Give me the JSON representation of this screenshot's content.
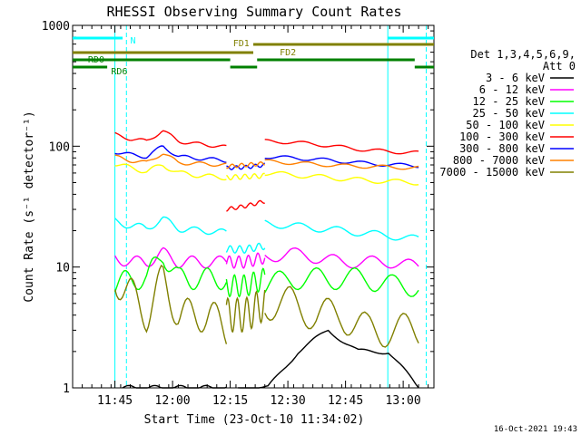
{
  "chart_data": {
    "type": "line",
    "title": "RHESSI Observing Summary Count Rates",
    "xlabel": "Start Time (23-Oct-10 11:34:02)",
    "ylabel": "Count Rate (s⁻¹ detector⁻¹)",
    "yscale": "log",
    "ylim": [
      1,
      1000
    ],
    "xlim_minutes": [
      0,
      94
    ],
    "x_ticks": [
      {
        "label": "11:45",
        "minute": 11
      },
      {
        "label": "12:00",
        "minute": 26
      },
      {
        "label": "12:15",
        "minute": 41
      },
      {
        "label": "12:30",
        "minute": 56
      },
      {
        "label": "12:45",
        "minute": 71
      },
      {
        "label": "13:00",
        "minute": 86
      }
    ],
    "y_ticks": [
      {
        "label": "1",
        "value": 1
      },
      {
        "label": "10",
        "value": 10
      },
      {
        "label": "100",
        "value": 100
      },
      {
        "label": "1000",
        "value": 1000
      }
    ],
    "legend": {
      "header": [
        "Det 1,3,4,5,6,9,",
        "Att 0"
      ],
      "placement": "right"
    },
    "series": [
      {
        "name": "3 - 6 keV",
        "color": "#000000",
        "segments": [
          {
            "start": 13,
            "end": 40,
            "values": [
              1,
              1,
              1,
              1,
              1,
              1,
              1
            ]
          },
          {
            "start": 43,
            "end": 90,
            "values": [
              1,
              1,
              2,
              3,
              2,
              2,
              1
            ]
          }
        ]
      },
      {
        "name": "6 - 12 keV",
        "color": "#ff00ff",
        "segments": [
          {
            "start": 11,
            "end": 40,
            "values": [
              12,
              11,
              11,
              13,
              11,
              11,
              11,
              11
            ]
          },
          {
            "start": 40,
            "end": 50,
            "values": [
              11,
              11,
              12
            ]
          },
          {
            "start": 50,
            "end": 90,
            "values": [
              12,
              13,
              12,
              11,
              11,
              11,
              10
            ]
          }
        ]
      },
      {
        "name": "12 - 25 keV",
        "color": "#00ff00",
        "segments": [
          {
            "start": 11,
            "end": 40,
            "values": [
              7,
              8,
              8,
              13,
              8,
              8,
              8,
              8
            ]
          },
          {
            "start": 40,
            "end": 50,
            "values": [
              7,
              7,
              8
            ]
          },
          {
            "start": 50,
            "end": 90,
            "values": [
              7,
              8,
              8,
              8,
              8,
              7,
              7
            ]
          }
        ]
      },
      {
        "name": "25 - 50 keV",
        "color": "#00ffff",
        "segments": [
          {
            "start": 11,
            "end": 40,
            "values": [
              24,
              22,
              21,
              25,
              21,
              20,
              20,
              19
            ]
          },
          {
            "start": 40,
            "end": 50,
            "values": [
              14,
              14,
              15
            ]
          },
          {
            "start": 50,
            "end": 90,
            "values": [
              23,
              22,
              21,
              20,
              19,
              18,
              17
            ]
          }
        ]
      },
      {
        "name": "50 - 100 keV",
        "color": "#ffff00",
        "segments": [
          {
            "start": 11,
            "end": 40,
            "values": [
              72,
              66,
              62,
              70,
              60,
              58,
              56,
              55
            ]
          },
          {
            "start": 40,
            "end": 50,
            "values": [
              55,
              56,
              57
            ]
          },
          {
            "start": 50,
            "end": 90,
            "values": [
              60,
              58,
              56,
              54,
              52,
              51,
              50
            ]
          }
        ]
      },
      {
        "name": "100 - 300 keV",
        "color": "#ff0000",
        "segments": [
          {
            "start": 11,
            "end": 40,
            "values": [
              125,
              115,
              110,
              135,
              110,
              105,
              102,
              98
            ]
          },
          {
            "start": 40,
            "end": 50,
            "values": [
              30,
              32,
              35
            ]
          },
          {
            "start": 50,
            "end": 90,
            "values": [
              110,
              108,
              104,
              98,
              93,
              90,
              88
            ]
          }
        ]
      },
      {
        "name": "300 - 800 keV",
        "color": "#0000ff",
        "segments": [
          {
            "start": 11,
            "end": 40,
            "values": [
              90,
              85,
              82,
              100,
              82,
              80,
              78,
              76
            ]
          },
          {
            "start": 40,
            "end": 50,
            "values": [
              66,
              67,
              70
            ]
          },
          {
            "start": 50,
            "end": 90,
            "values": [
              82,
              80,
              78,
              75,
              72,
              70,
              69
            ]
          }
        ]
      },
      {
        "name": "800 - 7000 keV",
        "color": "#ff8000",
        "segments": [
          {
            "start": 11,
            "end": 40,
            "values": [
              82,
              76,
              73,
              88,
              73,
              72,
              71,
              70
            ]
          },
          {
            "start": 40,
            "end": 50,
            "values": [
              68,
              70,
              72
            ]
          },
          {
            "start": 50,
            "end": 90,
            "values": [
              75,
              73,
              71,
              69,
              68,
              67,
              66
            ]
          }
        ]
      },
      {
        "name": "7000 - 15000 keV",
        "color": "#808000",
        "segments": [
          {
            "start": 11,
            "end": 40,
            "values": [
              8,
              6,
              4,
              8,
              4,
              4,
              4,
              3
            ]
          },
          {
            "start": 40,
            "end": 50,
            "values": [
              4,
              4,
              5
            ]
          },
          {
            "start": 50,
            "end": 90,
            "values": [
              5,
              5,
              4,
              4,
              3,
              3,
              3
            ]
          }
        ]
      }
    ],
    "observing_flags": [
      {
        "label": "N",
        "color": "#00ffff",
        "bars": [
          [
            0,
            13
          ],
          [
            82,
            94
          ]
        ]
      },
      {
        "label": "FD1",
        "color": "#808000",
        "bars": [
          [
            47,
            94
          ]
        ]
      },
      {
        "label": "FD2",
        "color": "#808000",
        "bars": [
          [
            0,
            47
          ]
        ]
      },
      {
        "label": "RD0",
        "color": "#008000",
        "bars": [
          [
            0,
            41
          ],
          [
            48,
            89
          ]
        ]
      },
      {
        "label": "RD6",
        "color": "#008000",
        "bars": [
          [
            0,
            9
          ],
          [
            41,
            48
          ],
          [
            89,
            94
          ]
        ]
      }
    ],
    "vertical_markers": [
      {
        "minute": 11,
        "color": "#00ffff",
        "style": "solid"
      },
      {
        "minute": 14,
        "color": "#00ffff",
        "style": "dashed"
      },
      {
        "minute": 82,
        "color": "#00ffff",
        "style": "solid"
      },
      {
        "minute": 92,
        "color": "#00ffff",
        "style": "dashed"
      }
    ]
  },
  "footer_timestamp": "16-Oct-2021 19:43"
}
